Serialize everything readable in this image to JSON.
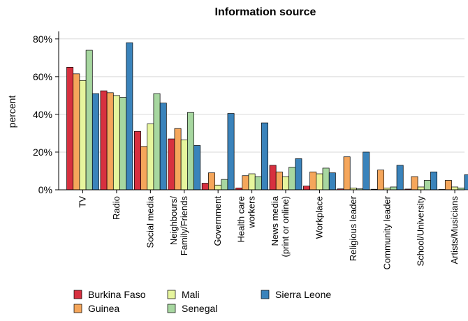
{
  "chart_data": {
    "type": "bar",
    "title": "Information source",
    "ylabel": "percent",
    "xlabel": "",
    "ylim": [
      0,
      84
    ],
    "yticks": [
      0,
      20,
      40,
      60,
      80
    ],
    "ytick_labels": [
      "0%",
      "20%",
      "40%",
      "60%",
      "80%"
    ],
    "grid": true,
    "legend_position": "bottom",
    "categories": [
      "TV",
      "Radio",
      "Social media",
      "Neighbours/\nFamily/Friends",
      "Government",
      "Health care\nworkers",
      "News media\n(print or online)",
      "Workplace",
      "Religious leader",
      "Community leader",
      "School/University",
      "Artists/Musicians"
    ],
    "series": [
      {
        "name": "Burkina Faso",
        "color": "#d7303f",
        "values": [
          65,
          52.5,
          31,
          27,
          3.5,
          1,
          13,
          2,
          0.5,
          0.3,
          0.4,
          0.2
        ]
      },
      {
        "name": "Guinea",
        "color": "#f5a65b",
        "values": [
          61.5,
          51.5,
          23,
          32.5,
          9,
          7.5,
          9.5,
          9.5,
          17.5,
          10.5,
          7,
          5
        ]
      },
      {
        "name": "Mali",
        "color": "#e6f59d",
        "values": [
          58,
          50,
          35,
          26.5,
          2.5,
          8.5,
          7,
          8.5,
          1,
          1,
          1.5,
          1.5
        ]
      },
      {
        "name": "Senegal",
        "color": "#a7d7a0",
        "values": [
          74,
          49,
          51,
          41,
          5.5,
          7,
          12,
          11.5,
          0.5,
          1.5,
          5,
          1
        ]
      },
      {
        "name": "Sierra Leone",
        "color": "#3a83bb",
        "values": [
          51,
          78,
          46,
          23.5,
          40.5,
          35.5,
          16.5,
          9,
          20,
          13,
          9.5,
          8
        ]
      }
    ]
  }
}
